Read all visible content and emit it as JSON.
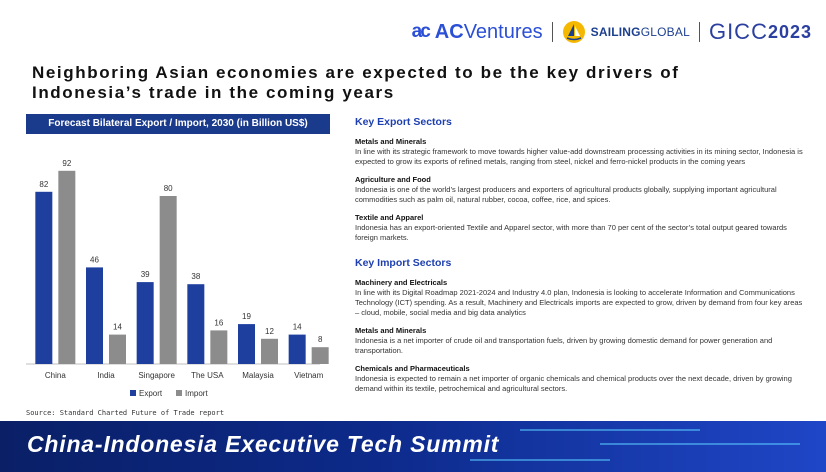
{
  "logos": {
    "ac_mark": "ac",
    "ac_bold": "AC",
    "ac_rest": "Ventures",
    "sailing_bold": "SAILING",
    "sailing_light": " GLOBAL",
    "gicc_text": "GICC",
    "gicc_year": "2023"
  },
  "headline": "Neighboring Asian economies are expected to be the key drivers of Indonesia’s trade in the coming years",
  "chart_title": "Forecast Bilateral Export / Import, 2030 (in Billion US$)",
  "source": "Source: Standard Charted Future of Trade report",
  "chart_data": {
    "type": "bar",
    "title": "Forecast Bilateral Export / Import, 2030 (in Billion US$)",
    "categories": [
      "China",
      "India",
      "Singapore",
      "The USA",
      "Malaysia",
      "Vietnam"
    ],
    "series": [
      {
        "name": "Export",
        "color": "#1f3f9e",
        "values": [
          82,
          46,
          39,
          38,
          19,
          14
        ]
      },
      {
        "name": "Import",
        "color": "#8c8c8c",
        "values": [
          92,
          14,
          80,
          16,
          12,
          8
        ]
      }
    ],
    "ylim": [
      0,
      100
    ],
    "xlabel": "",
    "ylabel": "",
    "legend": "bottom-center"
  },
  "export_section": {
    "title": "Key Export Sectors",
    "items": [
      {
        "title": "Metals and Minerals",
        "text": "In line with its strategic framework to move towards higher value-add downstream processing activities in its mining sector, Indonesia is expected to grow its exports of refined metals, ranging from steel, nickel and ferro-nickel products in the coming years"
      },
      {
        "title": "Agriculture and Food",
        "text": "Indonesia is one of the world’s largest producers and exporters of agricultural products globally, supplying important agricultural commodities such as palm oil, natural rubber, cocoa, coffee, rice, and spices."
      },
      {
        "title": "Textile and Apparel",
        "text": "Indonesia has an export-oriented Textile and Apparel sector, with more than 70 per cent of the sector’s total output geared towards foreign markets."
      }
    ]
  },
  "import_section": {
    "title": "Key Import Sectors",
    "items": [
      {
        "title": "Machinery and Electricals",
        "text": "In line with its Digital Roadmap 2021-2024 and Industry 4.0 plan, Indonesia is looking to accelerate Information and Communications Technology (ICT) spending. As a result, Machinery and Electricals imports are expected to grow, driven by demand from four key areas – cloud, mobile, social media and big data analytics"
      },
      {
        "title": "Metals and Minerals",
        "text": "Indonesia is a net importer of crude oil and transportation fuels, driven by growing domestic demand for power generation and transportation."
      },
      {
        "title": "Chemicals and Pharmaceuticals",
        "text": "Indonesia is expected to remain a net importer of organic chemicals and chemical products over the next decade, driven by growing demand within its textile, petrochemical and agricultural sectors."
      }
    ]
  },
  "banner": {
    "text": "China-Indonesia Executive Tech Summit"
  }
}
